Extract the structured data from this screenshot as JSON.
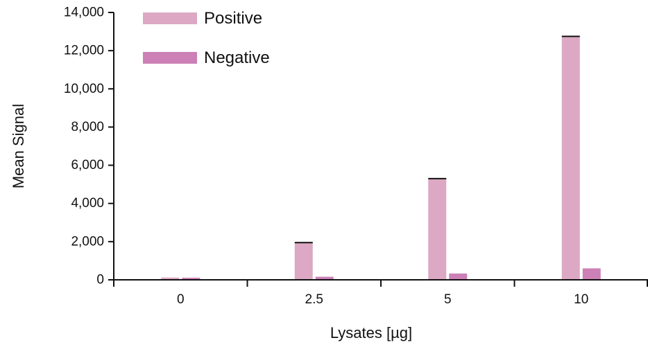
{
  "chart_data": {
    "type": "bar",
    "title": "",
    "xlabel": "Lysates [µg]",
    "ylabel": "Mean Signal",
    "categories": [
      "0",
      "2.5",
      "5",
      "10"
    ],
    "series": [
      {
        "name": "Positive",
        "values": [
          120,
          1950,
          5300,
          12750
        ],
        "color": "#dca8c4"
      },
      {
        "name": "Negative",
        "values": [
          110,
          160,
          330,
          600
        ],
        "color": "#cc80b6"
      }
    ],
    "ylim": [
      0,
      14000
    ],
    "yticks": [
      "0",
      "2,000",
      "4,000",
      "6,000",
      "8,000",
      "10,000",
      "12,000",
      "14,000"
    ],
    "ytick_values": [
      0,
      2000,
      4000,
      6000,
      8000,
      10000,
      12000,
      14000
    ],
    "grid": false,
    "legend_position": "top-left"
  }
}
